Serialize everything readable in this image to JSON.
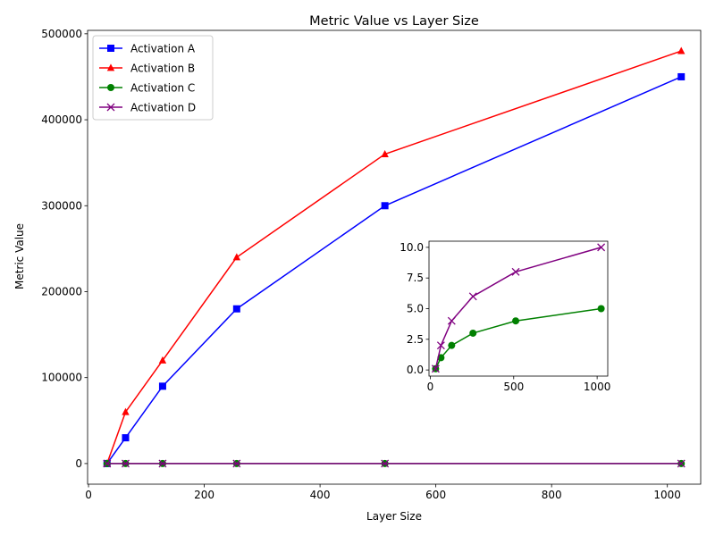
{
  "chart_data": [
    {
      "type": "line",
      "title": "Metric Value vs Layer Size",
      "xlabel": "Layer Size",
      "ylabel": "Metric Value",
      "xlim": [
        -1.6,
        1057.6
      ],
      "ylim": [
        -24000,
        504000
      ],
      "xticks": [
        0,
        200,
        400,
        600,
        800,
        1000
      ],
      "yticks": [
        0,
        100000,
        200000,
        300000,
        400000,
        500000
      ],
      "x": [
        32,
        64,
        128,
        256,
        512,
        1024
      ],
      "legend_position": "upper-left",
      "grid": false,
      "series": [
        {
          "name": "Activation A",
          "color": "#0000ff",
          "marker": "square",
          "values": [
            0,
            30000,
            90000,
            180000,
            300000,
            450000
          ]
        },
        {
          "name": "Activation B",
          "color": "#ff0000",
          "marker": "triangle",
          "values": [
            0,
            60000,
            120000,
            240000,
            360000,
            480000
          ]
        },
        {
          "name": "Activation C",
          "color": "#008000",
          "marker": "circle",
          "values": [
            0.1,
            1,
            2,
            3,
            4,
            5
          ]
        },
        {
          "name": "Activation D",
          "color": "#800080",
          "marker": "x",
          "values": [
            0.1,
            2,
            4,
            6,
            8,
            10
          ]
        }
      ]
    },
    {
      "type": "line",
      "title": "",
      "xlabel": "",
      "ylabel": "",
      "xlim": [
        -7.6,
        1063.6
      ],
      "ylim": [
        -0.5,
        10.5
      ],
      "xticks": [
        0,
        500,
        1000
      ],
      "yticks": [
        0.0,
        2.5,
        5.0,
        7.5,
        10.0
      ],
      "ytick_labels": [
        "0.0",
        "2.5",
        "5.0",
        "7.5",
        "10.0"
      ],
      "x": [
        32,
        64,
        128,
        256,
        512,
        1024
      ],
      "series": [
        {
          "color": "#008000",
          "marker": "circle",
          "values": [
            0.1,
            1,
            2,
            3,
            4,
            5
          ]
        },
        {
          "color": "#800080",
          "marker": "x",
          "values": [
            0.1,
            2,
            4,
            6,
            8,
            10
          ]
        }
      ]
    }
  ]
}
